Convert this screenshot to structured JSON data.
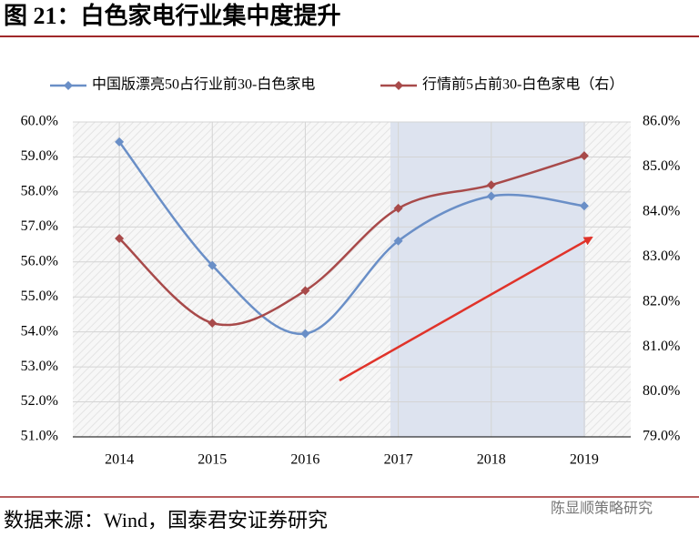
{
  "title": "图 21：白色家电行业集中度提升",
  "source": "数据来源：Wind，国泰君安证券研究",
  "watermark": "陈显顺策略研究",
  "chart_data": {
    "type": "line",
    "categories": [
      "2014",
      "2015",
      "2016",
      "2017",
      "2018",
      "2019"
    ],
    "series": [
      {
        "name": "中国版漂亮50占行业前30-白色家电",
        "color": "#6a8fc7",
        "values": [
          59.43,
          55.9,
          53.95,
          56.6,
          57.88,
          57.6
        ]
      },
      {
        "name": "行情前5占前30-白色家电（右）",
        "color": "#a84a4a",
        "axis": "y2",
        "values": [
          83.41,
          81.53,
          82.25,
          84.08,
          84.6,
          85.25
        ]
      }
    ],
    "ylim": [
      51,
      60
    ],
    "yticks": [
      {
        "value": 51,
        "label": "51.0%"
      },
      {
        "value": 52,
        "label": "52.0%"
      },
      {
        "value": 53,
        "label": "53.0%"
      },
      {
        "value": 54,
        "label": "54.0%"
      },
      {
        "value": 55,
        "label": "55.0%"
      },
      {
        "value": 56,
        "label": "56.0%"
      },
      {
        "value": 57,
        "label": "57.0%"
      },
      {
        "value": 58,
        "label": "58.0%"
      },
      {
        "value": 59,
        "label": "59.0%"
      },
      {
        "value": 60,
        "label": "60.0%"
      }
    ],
    "y2lim": [
      79,
      86
    ],
    "y2ticks": [
      {
        "value": 79,
        "label": "79.0%"
      },
      {
        "value": 80,
        "label": "80.0%"
      },
      {
        "value": 81,
        "label": "81.0%"
      },
      {
        "value": 82,
        "label": "82.0%"
      },
      {
        "value": 83,
        "label": "83.0%"
      },
      {
        "value": 84,
        "label": "84.0%"
      },
      {
        "value": 85,
        "label": "85.0%"
      },
      {
        "value": 86,
        "label": "86.0%"
      }
    ],
    "grid": true
  }
}
